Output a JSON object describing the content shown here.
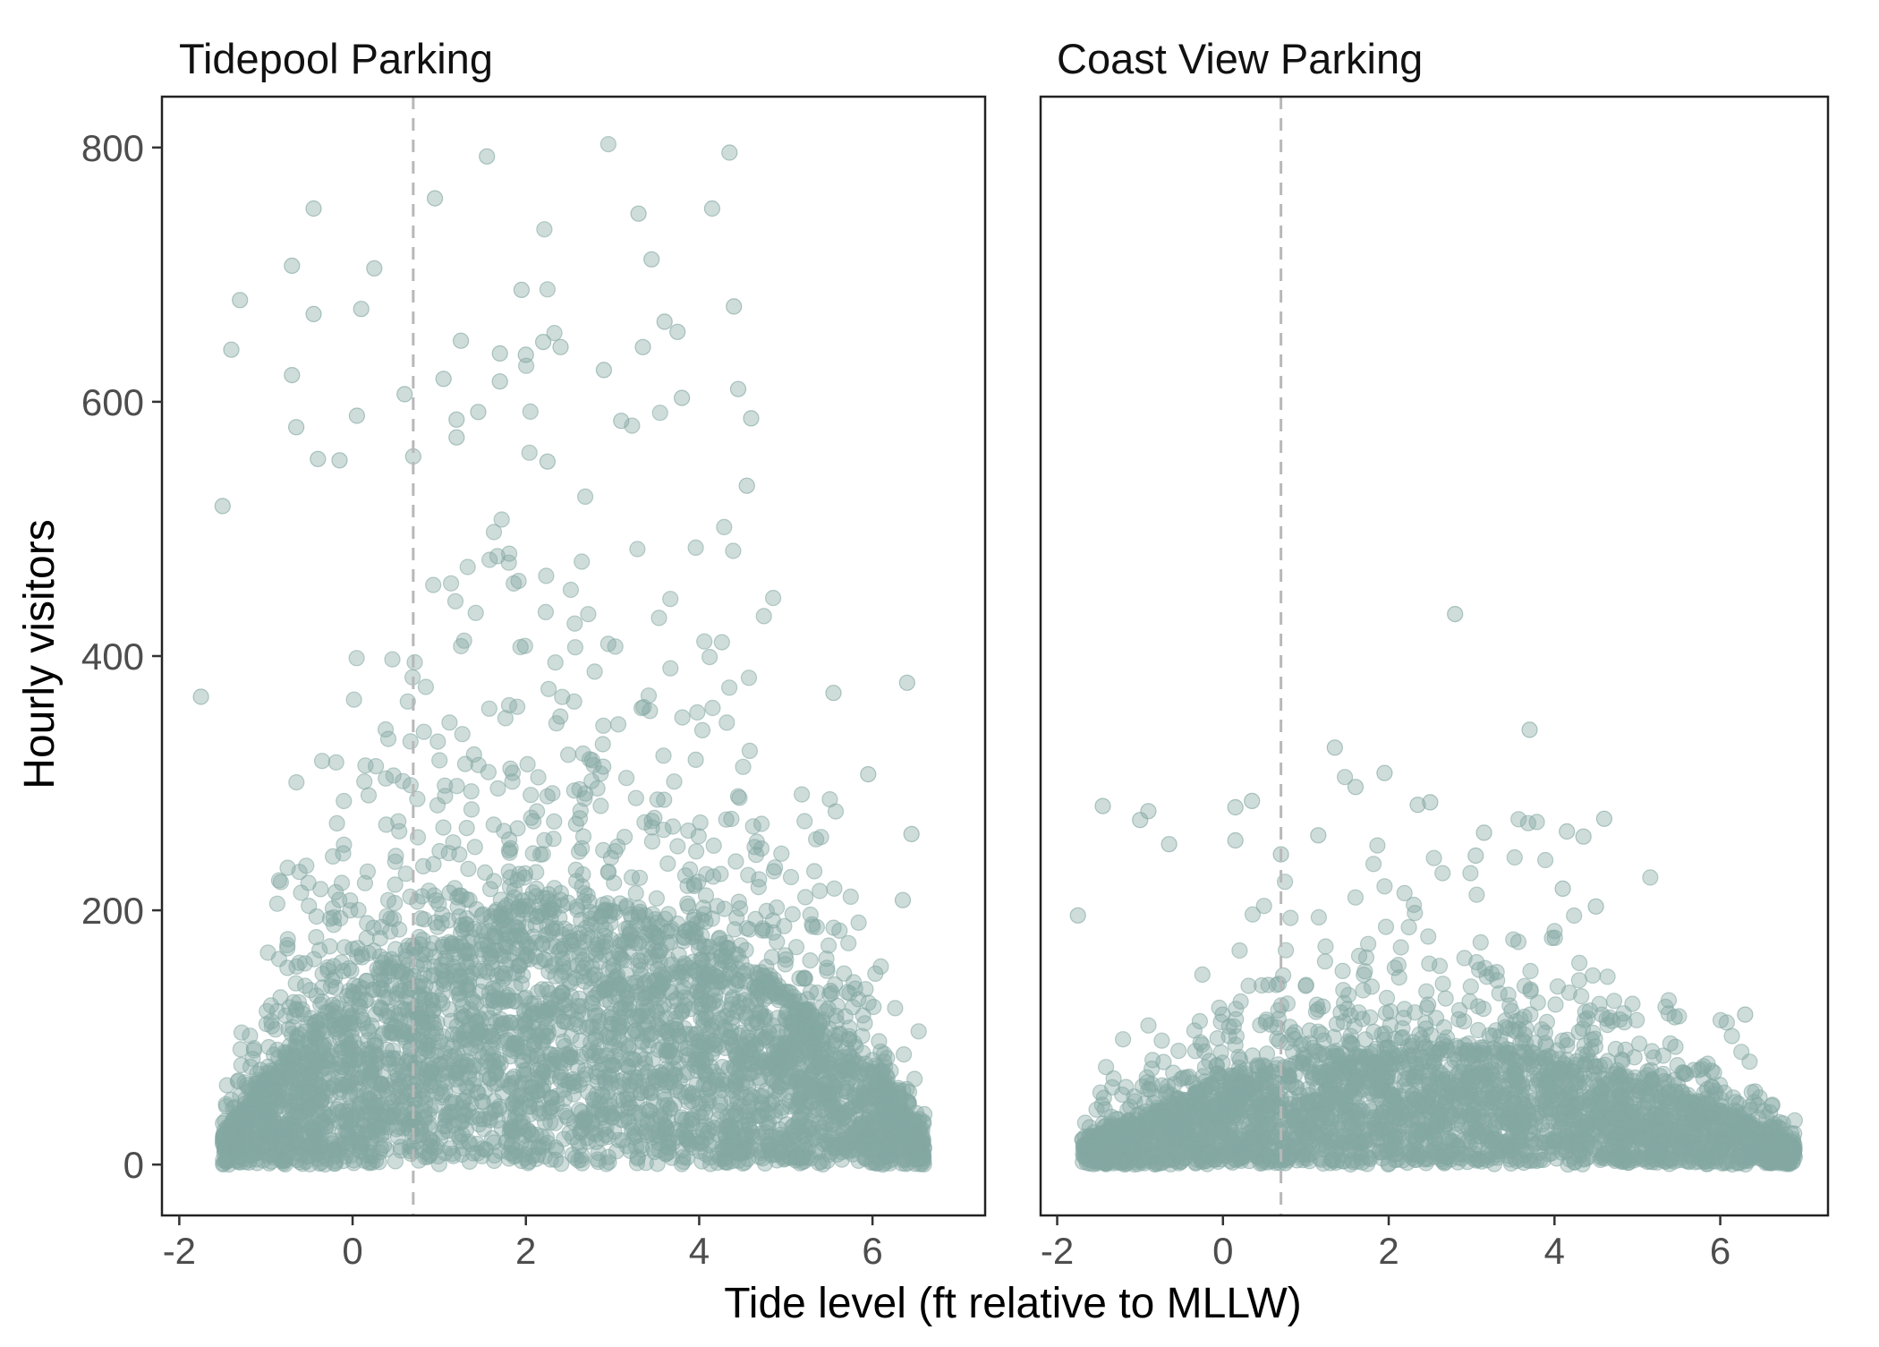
{
  "chart_data": {
    "type": "scatter",
    "xlabel": "Tide level (ft relative to MLLW)",
    "ylabel": "Hourly visitors",
    "xlim": [
      -2.2,
      7.3
    ],
    "ylim": [
      -40,
      840
    ],
    "x_ticks": [
      -2,
      0,
      2,
      4,
      6
    ],
    "y_ticks": [
      0,
      200,
      400,
      600,
      800
    ],
    "grid": false,
    "legend": "none",
    "point_color": "#84a8a3",
    "point_opacity": 0.4,
    "reference_line": {
      "x": 0.7,
      "style": "dashed",
      "color": "#b8b8b8"
    },
    "panels": [
      {
        "title": "Tidepool Parking",
        "dense_core": {
          "x_min": -1.5,
          "x_max": 6.6,
          "x_peak": 2.4,
          "y_peak": 210,
          "y_edge": 25
        },
        "outliers": [
          {
            "x": -0.45,
            "y": 752
          },
          {
            "x": 1.55,
            "y": 793
          },
          {
            "x": 4.35,
            "y": 796
          },
          {
            "x": 0.95,
            "y": 760
          },
          {
            "x": 3.3,
            "y": 748
          },
          {
            "x": 4.15,
            "y": 752
          },
          {
            "x": -0.7,
            "y": 707
          },
          {
            "x": 0.25,
            "y": 705
          },
          {
            "x": 3.45,
            "y": 712
          },
          {
            "x": -1.3,
            "y": 680
          },
          {
            "x": 1.95,
            "y": 688
          },
          {
            "x": 4.4,
            "y": 675
          },
          {
            "x": -0.45,
            "y": 669
          },
          {
            "x": 0.1,
            "y": 673
          },
          {
            "x": 3.6,
            "y": 663
          },
          {
            "x": 3.75,
            "y": 655
          },
          {
            "x": 1.7,
            "y": 638
          },
          {
            "x": 2.0,
            "y": 637
          },
          {
            "x": 2.2,
            "y": 647
          },
          {
            "x": 2.4,
            "y": 643
          },
          {
            "x": 3.35,
            "y": 643
          },
          {
            "x": -1.4,
            "y": 641
          },
          {
            "x": 1.25,
            "y": 648
          },
          {
            "x": 2.9,
            "y": 625
          },
          {
            "x": -0.7,
            "y": 621
          },
          {
            "x": 1.05,
            "y": 618
          },
          {
            "x": 1.7,
            "y": 616
          },
          {
            "x": 4.45,
            "y": 610
          },
          {
            "x": 0.6,
            "y": 606
          },
          {
            "x": 3.8,
            "y": 603
          },
          {
            "x": 0.05,
            "y": 589
          },
          {
            "x": 1.2,
            "y": 586
          },
          {
            "x": 1.45,
            "y": 592
          },
          {
            "x": 3.1,
            "y": 585
          },
          {
            "x": 4.6,
            "y": 587
          },
          {
            "x": -0.65,
            "y": 580
          },
          {
            "x": 1.2,
            "y": 572
          },
          {
            "x": -0.4,
            "y": 555
          },
          {
            "x": -0.15,
            "y": 554
          },
          {
            "x": 0.7,
            "y": 557
          },
          {
            "x": -1.5,
            "y": 518
          },
          {
            "x": 2.25,
            "y": 553
          },
          {
            "x": 4.55,
            "y": 534
          },
          {
            "x": 6.4,
            "y": 379
          },
          {
            "x": -1.75,
            "y": 368
          },
          {
            "x": 5.55,
            "y": 371
          },
          {
            "x": 5.95,
            "y": 307
          },
          {
            "x": 6.45,
            "y": 260
          },
          {
            "x": 6.35,
            "y": 208
          }
        ]
      },
      {
        "title": "Coast View Parking",
        "dense_core": {
          "x_min": -1.7,
          "x_max": 6.9,
          "x_peak": 2.4,
          "y_peak": 95,
          "y_edge": 15
        },
        "outliers": [
          {
            "x": 2.8,
            "y": 433
          },
          {
            "x": 3.7,
            "y": 342
          },
          {
            "x": 1.35,
            "y": 328
          },
          {
            "x": 1.95,
            "y": 308
          },
          {
            "x": 1.6,
            "y": 297
          },
          {
            "x": 0.35,
            "y": 286
          },
          {
            "x": 0.15,
            "y": 281
          },
          {
            "x": 2.35,
            "y": 283
          },
          {
            "x": 2.5,
            "y": 285
          },
          {
            "x": -1.45,
            "y": 282
          },
          {
            "x": -0.9,
            "y": 278
          },
          {
            "x": 4.6,
            "y": 272
          },
          {
            "x": -1.0,
            "y": 271
          },
          {
            "x": 4.15,
            "y": 262
          },
          {
            "x": 4.35,
            "y": 258
          },
          {
            "x": 3.15,
            "y": 261
          },
          {
            "x": 1.15,
            "y": 259
          },
          {
            "x": 0.15,
            "y": 255
          },
          {
            "x": -0.65,
            "y": 252
          },
          {
            "x": 3.05,
            "y": 243
          },
          {
            "x": 4.1,
            "y": 217
          },
          {
            "x": 4.5,
            "y": 203
          },
          {
            "x": 6.3,
            "y": 118
          },
          {
            "x": 6.85,
            "y": 5
          },
          {
            "x": -1.75,
            "y": 196
          },
          {
            "x": 0.7,
            "y": 244
          }
        ]
      }
    ]
  }
}
